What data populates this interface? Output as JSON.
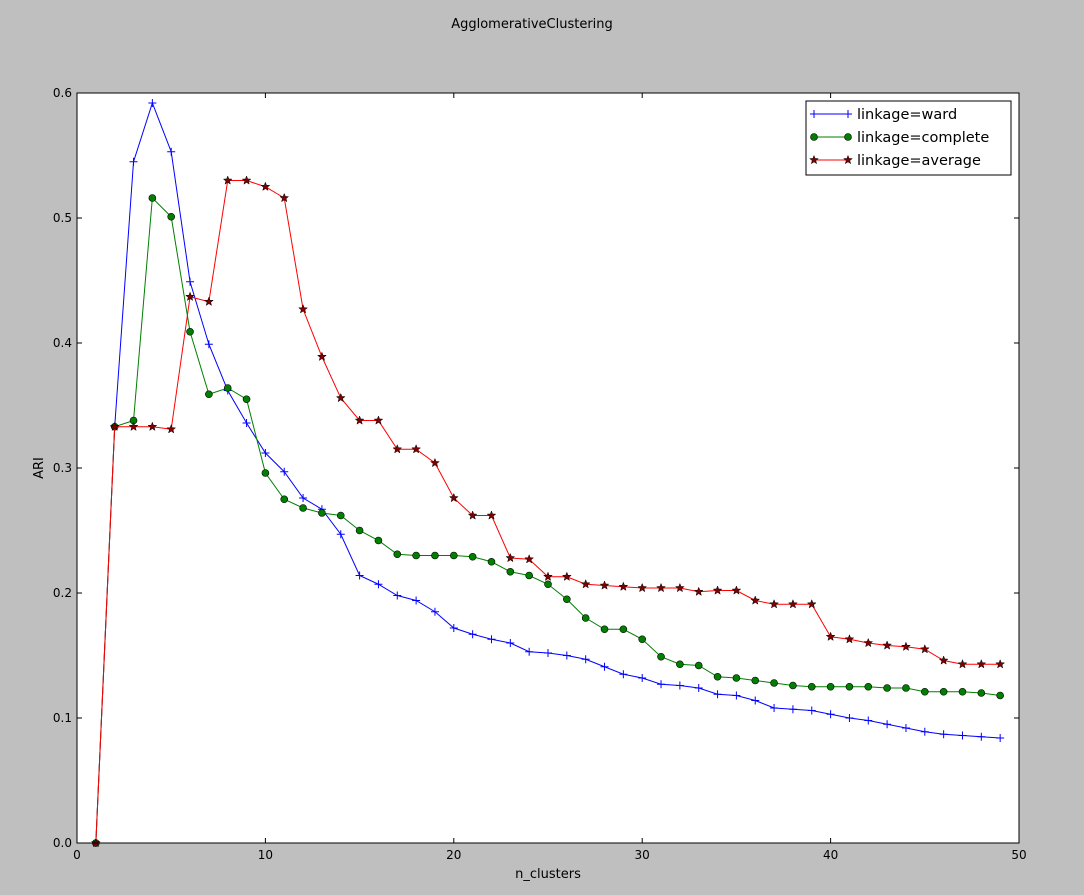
{
  "chart_data": {
    "type": "line",
    "title": "AgglomerativeClustering",
    "xlabel": "n_clusters",
    "ylabel": "ARI",
    "xlim": [
      0,
      50
    ],
    "ylim": [
      0.0,
      0.6
    ],
    "xticks": [
      0,
      10,
      20,
      30,
      40,
      50
    ],
    "yticks": [
      0.0,
      0.1,
      0.2,
      0.3,
      0.4,
      0.5,
      0.6
    ],
    "ytick_format": 1,
    "grid": false,
    "legend_position": "top-right",
    "x": [
      1,
      2,
      3,
      4,
      5,
      6,
      7,
      8,
      9,
      10,
      11,
      12,
      13,
      14,
      15,
      16,
      17,
      18,
      19,
      20,
      21,
      22,
      23,
      24,
      25,
      26,
      27,
      28,
      29,
      30,
      31,
      32,
      33,
      34,
      35,
      36,
      37,
      38,
      39,
      40,
      41,
      42,
      43,
      44,
      45,
      46,
      47,
      48,
      49
    ],
    "series": [
      {
        "name": "linkage=ward",
        "color": "#0000ff",
        "marker": "plus",
        "values": [
          0.0,
          0.333,
          0.545,
          0.592,
          0.553,
          0.449,
          0.399,
          0.362,
          0.336,
          0.312,
          0.297,
          0.276,
          0.267,
          0.247,
          0.214,
          0.207,
          0.198,
          0.194,
          0.185,
          0.172,
          0.167,
          0.163,
          0.16,
          0.153,
          0.152,
          0.15,
          0.147,
          0.141,
          0.135,
          0.132,
          0.127,
          0.126,
          0.124,
          0.119,
          0.118,
          0.114,
          0.108,
          0.107,
          0.106,
          0.103,
          0.1,
          0.098,
          0.095,
          0.092,
          0.089,
          0.087,
          0.086,
          0.085,
          0.084
        ]
      },
      {
        "name": "linkage=complete",
        "color": "#007f00",
        "marker": "circle",
        "values": [
          0.0,
          0.333,
          0.338,
          0.516,
          0.501,
          0.409,
          0.359,
          0.364,
          0.355,
          0.296,
          0.275,
          0.268,
          0.264,
          0.262,
          0.25,
          0.242,
          0.231,
          0.23,
          0.23,
          0.23,
          0.229,
          0.225,
          0.217,
          0.214,
          0.207,
          0.195,
          0.18,
          0.171,
          0.171,
          0.163,
          0.149,
          0.143,
          0.142,
          0.133,
          0.132,
          0.13,
          0.128,
          0.126,
          0.125,
          0.125,
          0.125,
          0.125,
          0.124,
          0.124,
          0.121,
          0.121,
          0.121,
          0.12,
          0.118
        ]
      },
      {
        "name": "linkage=average",
        "color": "#ff0000",
        "marker_fill": "#7f0000",
        "marker": "star",
        "values": [
          0.0,
          0.333,
          0.333,
          0.333,
          0.331,
          0.437,
          0.433,
          0.53,
          0.53,
          0.525,
          0.516,
          0.427,
          0.389,
          0.356,
          0.338,
          0.338,
          0.315,
          0.315,
          0.304,
          0.276,
          0.262,
          0.262,
          0.228,
          0.227,
          0.213,
          0.213,
          0.207,
          0.206,
          0.205,
          0.204,
          0.204,
          0.204,
          0.201,
          0.202,
          0.202,
          0.194,
          0.191,
          0.191,
          0.191,
          0.165,
          0.163,
          0.16,
          0.158,
          0.157,
          0.155,
          0.146,
          0.143,
          0.143,
          0.143
        ]
      }
    ]
  }
}
